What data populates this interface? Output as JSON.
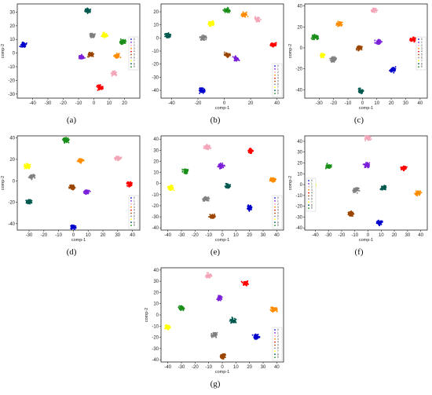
{
  "figure": {
    "colors": [
      "#0000cc",
      "#7b1fd9",
      "#f2a6b8",
      "#ff8c00",
      "#ff0000",
      "#9b4500",
      "#808080",
      "#ffff00",
      "#00594f",
      "#1a8f1a"
    ],
    "legend_labels": [
      "0",
      "1",
      "2",
      "3",
      "4",
      "5",
      "6",
      "7",
      "8",
      "9"
    ]
  },
  "chart_data": [
    {
      "type": "scatter",
      "caption": "(a)",
      "xlabel": "",
      "ylabel": "comp-2",
      "xlim": [
        -50,
        30
      ],
      "ylim": [
        -33,
        36
      ],
      "xticks": [
        -40,
        -30,
        -20,
        -10,
        0,
        10,
        20
      ],
      "yticks": [
        -30,
        -20,
        -10,
        0,
        10,
        20,
        30
      ],
      "legend": "right",
      "grid": false,
      "clusters": [
        {
          "label": "0",
          "x": -46,
          "y": 6
        },
        {
          "label": "1",
          "x": -8,
          "y": -3
        },
        {
          "label": "2",
          "x": 13,
          "y": -15
        },
        {
          "label": "3",
          "x": 15,
          "y": -2
        },
        {
          "label": "4",
          "x": 4,
          "y": -25
        },
        {
          "label": "5",
          "x": -2,
          "y": -1
        },
        {
          "label": "6",
          "x": -1,
          "y": 13
        },
        {
          "label": "7",
          "x": 7,
          "y": 13
        },
        {
          "label": "8",
          "x": -4,
          "y": 31
        },
        {
          "label": "9",
          "x": 19,
          "y": 8
        }
      ]
    },
    {
      "type": "scatter",
      "caption": "(b)",
      "xlabel": "comp-1",
      "ylabel": "",
      "xlim": [
        -48,
        45
      ],
      "ylim": [
        -46,
        26
      ],
      "xticks": [
        -40,
        -20,
        0,
        20,
        40
      ],
      "yticks": [
        -40,
        -30,
        -20,
        -10,
        0,
        10,
        20
      ],
      "legend": "lower right",
      "grid": false,
      "clusters": [
        {
          "label": "0",
          "x": -17,
          "y": -40
        },
        {
          "label": "1",
          "x": 9,
          "y": -16
        },
        {
          "label": "2",
          "x": 25,
          "y": 14
        },
        {
          "label": "3",
          "x": 15,
          "y": 18
        },
        {
          "label": "4",
          "x": 37,
          "y": -5
        },
        {
          "label": "5",
          "x": 2,
          "y": -13
        },
        {
          "label": "6",
          "x": -16,
          "y": 0
        },
        {
          "label": "7",
          "x": -10,
          "y": 11
        },
        {
          "label": "8",
          "x": -43,
          "y": 2
        },
        {
          "label": "9",
          "x": 2,
          "y": 21
        }
      ]
    },
    {
      "type": "scatter",
      "caption": "(c)",
      "xlabel": "comp-1",
      "ylabel": "comp-2",
      "xlim": [
        -40,
        45
      ],
      "ylim": [
        -48,
        42
      ],
      "xticks": [
        -30,
        -20,
        -10,
        0,
        10,
        20,
        30,
        40
      ],
      "yticks": [
        -40,
        -20,
        0,
        20,
        40
      ],
      "legend": "right",
      "grid": false,
      "clusters": [
        {
          "label": "0",
          "x": 21,
          "y": -21
        },
        {
          "label": "1",
          "x": 11,
          "y": 6
        },
        {
          "label": "2",
          "x": 8,
          "y": 36
        },
        {
          "label": "3",
          "x": -16,
          "y": 23
        },
        {
          "label": "4",
          "x": 35,
          "y": 8
        },
        {
          "label": "5",
          "x": -2,
          "y": 0
        },
        {
          "label": "6",
          "x": -20,
          "y": -11
        },
        {
          "label": "7",
          "x": -28,
          "y": -7
        },
        {
          "label": "8",
          "x": -1,
          "y": -41
        },
        {
          "label": "9",
          "x": -33,
          "y": 10
        }
      ]
    },
    {
      "type": "scatter",
      "caption": "(d)",
      "xlabel": "comp-1",
      "ylabel": "comp-2",
      "xlim": [
        -38,
        45
      ],
      "ylim": [
        -46,
        42
      ],
      "xticks": [
        -30,
        -20,
        -10,
        0,
        10,
        20,
        30,
        40
      ],
      "yticks": [
        -40,
        -20,
        0,
        20,
        40
      ],
      "legend": "lower right",
      "grid": false,
      "clusters": [
        {
          "label": "0",
          "x": 0,
          "y": -43
        },
        {
          "label": "1",
          "x": 9,
          "y": -10
        },
        {
          "label": "2",
          "x": 30,
          "y": 21
        },
        {
          "label": "3",
          "x": 5,
          "y": 19
        },
        {
          "label": "4",
          "x": 38,
          "y": -3
        },
        {
          "label": "5",
          "x": -1,
          "y": -6
        },
        {
          "label": "6",
          "x": -28,
          "y": 4
        },
        {
          "label": "7",
          "x": -31,
          "y": 14
        },
        {
          "label": "8",
          "x": -30,
          "y": -20
        },
        {
          "label": "9",
          "x": -5,
          "y": 38
        }
      ]
    },
    {
      "type": "scatter",
      "caption": "(e)",
      "xlabel": "comp-1",
      "ylabel": "",
      "xlim": [
        -45,
        45
      ],
      "ylim": [
        -42,
        43
      ],
      "xticks": [
        -40,
        -30,
        -20,
        -10,
        0,
        10,
        20,
        30,
        40
      ],
      "yticks": [
        -40,
        -30,
        -20,
        -10,
        0,
        10,
        20,
        30,
        40
      ],
      "legend": "lower right",
      "grid": false,
      "clusters": [
        {
          "label": "0",
          "x": 20,
          "y": -22
        },
        {
          "label": "1",
          "x": -1,
          "y": 16
        },
        {
          "label": "2",
          "x": -11,
          "y": 33
        },
        {
          "label": "3",
          "x": 37,
          "y": 3
        },
        {
          "label": "4",
          "x": 21,
          "y": 29
        },
        {
          "label": "5",
          "x": -7,
          "y": -30
        },
        {
          "label": "6",
          "x": -12,
          "y": -14
        },
        {
          "label": "7",
          "x": -38,
          "y": -4
        },
        {
          "label": "8",
          "x": 4,
          "y": -2
        },
        {
          "label": "9",
          "x": -27,
          "y": 11
        }
      ]
    },
    {
      "type": "scatter",
      "caption": "(f)",
      "xlabel": "comp-1",
      "ylabel": "comp-2",
      "xlim": [
        -48,
        45
      ],
      "ylim": [
        -42,
        45
      ],
      "xticks": [
        -40,
        -30,
        -20,
        -10,
        0,
        10,
        20,
        30,
        40
      ],
      "yticks": [
        -40,
        -30,
        -20,
        -10,
        0,
        10,
        20,
        30,
        40
      ],
      "legend": "left",
      "grid": false,
      "clusters": [
        {
          "label": "0",
          "x": 9,
          "y": -35
        },
        {
          "label": "1",
          "x": -1,
          "y": 18
        },
        {
          "label": "2",
          "x": 0,
          "y": 43
        },
        {
          "label": "3",
          "x": 38,
          "y": -8
        },
        {
          "label": "4",
          "x": 27,
          "y": 15
        },
        {
          "label": "5",
          "x": -13,
          "y": -27
        },
        {
          "label": "6",
          "x": -9,
          "y": -5
        },
        {
          "label": "7",
          "x": -42,
          "y": -1
        },
        {
          "label": "8",
          "x": 12,
          "y": -3
        },
        {
          "label": "9",
          "x": -30,
          "y": 17
        }
      ]
    },
    {
      "type": "scatter",
      "caption": "(g)",
      "xlabel": "comp-1",
      "ylabel": "comp-2",
      "xlim": [
        -45,
        45
      ],
      "ylim": [
        -42,
        42
      ],
      "xticks": [
        -40,
        -30,
        -20,
        -10,
        0,
        10,
        20,
        30,
        40
      ],
      "yticks": [
        -40,
        -30,
        -20,
        -10,
        0,
        10,
        20,
        30,
        40
      ],
      "legend": "lower right",
      "grid": false,
      "clusters": [
        {
          "label": "0",
          "x": 25,
          "y": -19
        },
        {
          "label": "1",
          "x": -2,
          "y": 15
        },
        {
          "label": "2",
          "x": -10,
          "y": 35
        },
        {
          "label": "3",
          "x": 38,
          "y": 5
        },
        {
          "label": "4",
          "x": 17,
          "y": 28
        },
        {
          "label": "5",
          "x": 0,
          "y": -37
        },
        {
          "label": "6",
          "x": -6,
          "y": -18
        },
        {
          "label": "7",
          "x": -40,
          "y": -11
        },
        {
          "label": "8",
          "x": 8,
          "y": -5
        },
        {
          "label": "9",
          "x": -30,
          "y": 6
        }
      ]
    }
  ]
}
